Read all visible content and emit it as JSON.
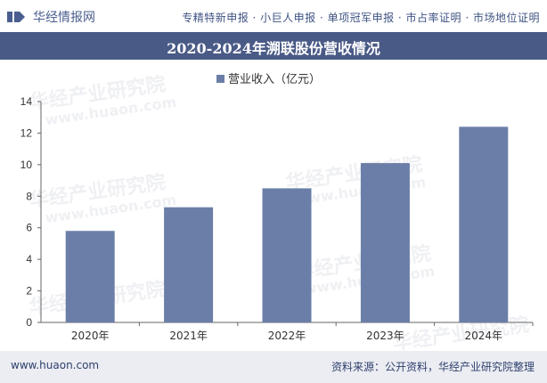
{
  "header": {
    "logo_text": "华经情报网",
    "tags": "专精特新申报 · 小巨人申报 · 单项冠军申报 · 市占率证明 · 市场地位证明"
  },
  "title": "2020-2024年溯联股份营收情况",
  "watermarks": [
    "华经产业研究院",
    "www.huaon.com"
  ],
  "footer": {
    "url": "www.huaon.com",
    "source": "资料来源：公开资料，华经产业研究院整理"
  },
  "colors": {
    "bar": "#6a7ea8",
    "title_bg": "#4a5a86",
    "footer_bg": "#ebedf3"
  },
  "chart_data": {
    "type": "bar",
    "categories": [
      "2020年",
      "2021年",
      "2022年",
      "2023年",
      "2024年"
    ],
    "series": [
      {
        "name": "营业收入（亿元）",
        "values": [
          5.8,
          7.3,
          8.5,
          10.1,
          12.4
        ]
      }
    ],
    "ylim": [
      0,
      14
    ],
    "yticks": [
      0,
      2,
      4,
      6,
      8,
      10,
      12,
      14
    ],
    "grid": false,
    "legend": "top-center"
  }
}
